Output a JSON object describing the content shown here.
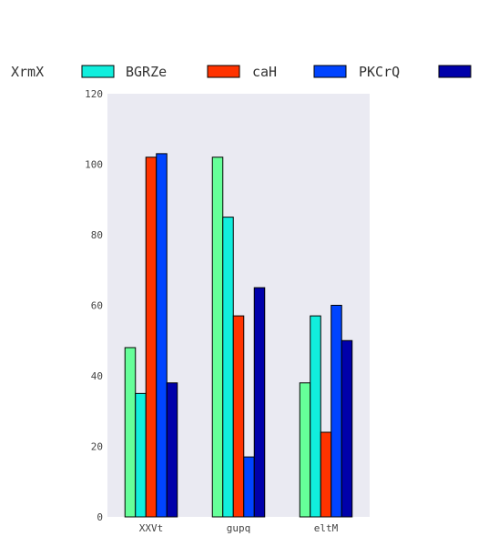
{
  "chart_data": {
    "type": "bar",
    "title": "",
    "xlabel": "",
    "ylabel": "",
    "categories": [
      "XXVt",
      "gupq",
      "eltM"
    ],
    "series": [
      {
        "name": "XrmX",
        "color": "#66ff99",
        "values": [
          48,
          102,
          38
        ]
      },
      {
        "name": "BGRZe",
        "color": "#11eedd",
        "values": [
          35,
          85,
          57
        ]
      },
      {
        "name": "caH",
        "color": "#ff3300",
        "values": [
          102,
          57,
          24
        ]
      },
      {
        "name": "PKCrQ",
        "color": "#0044ff",
        "values": [
          103,
          17,
          60
        ]
      },
      {
        "name": "",
        "color": "#0000aa",
        "values": [
          38,
          65,
          50
        ]
      }
    ],
    "ylim": [
      0,
      120
    ],
    "yticks": [
      0,
      20,
      40,
      60,
      80,
      100,
      120
    ],
    "grid": false,
    "background": "#eaeaf2",
    "legend_position": "top"
  }
}
